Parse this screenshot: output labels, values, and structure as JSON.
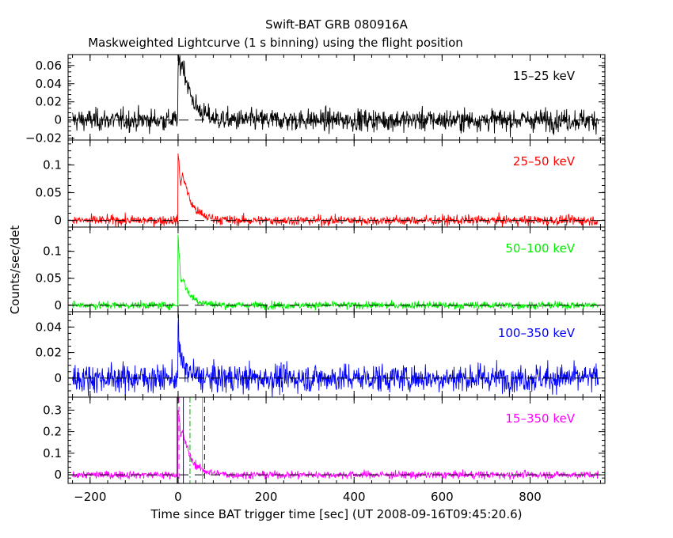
{
  "chart_data": {
    "type": "line",
    "title": "Swift-BAT GRB 080916A",
    "subtitle": "Maskweighted Lightcurve (1 s binning) using the flight position",
    "xlabel": "Time since BAT trigger time [sec] (UT 2008-09-16T09:45:20.6)",
    "ylabel": "Counts/sec/det",
    "xlim": [
      -250,
      970
    ],
    "xticks": [
      -200,
      0,
      200,
      400,
      600,
      800
    ],
    "xtick_labels": [
      "−200",
      "0",
      "200",
      "400",
      "600",
      "800"
    ],
    "panels": [
      {
        "band": "15–25 keV",
        "color": "#000000",
        "ylim": [
          -0.022,
          0.072
        ],
        "yticks": [
          -0.02,
          0,
          0.02,
          0.04,
          0.06
        ],
        "ytick_labels": [
          "−0.02",
          "0",
          "0.02",
          "0.04",
          "0.06"
        ],
        "noise_sd": 0.006,
        "profile": [
          [
            0,
            0.055
          ],
          [
            3,
            0.065
          ],
          [
            6,
            0.06
          ],
          [
            10,
            0.063
          ],
          [
            14,
            0.055
          ],
          [
            20,
            0.042
          ],
          [
            30,
            0.025
          ],
          [
            45,
            0.012
          ],
          [
            65,
            0.005
          ],
          [
            90,
            0.001
          ],
          [
            120,
            0
          ]
        ]
      },
      {
        "band": "25–50 keV",
        "color": "#ff0000",
        "ylim": [
          -0.012,
          0.145
        ],
        "yticks": [
          0,
          0.05,
          0.1
        ],
        "ytick_labels": [
          "0",
          "0.05",
          "0.1"
        ],
        "noise_sd": 0.0045,
        "profile": [
          [
            0,
            0.12
          ],
          [
            3,
            0.095
          ],
          [
            6,
            0.06
          ],
          [
            10,
            0.085
          ],
          [
            15,
            0.07
          ],
          [
            20,
            0.055
          ],
          [
            30,
            0.03
          ],
          [
            45,
            0.015
          ],
          [
            65,
            0.006
          ],
          [
            90,
            0.002
          ],
          [
            120,
            0
          ]
        ]
      },
      {
        "band": "50–100 keV",
        "color": "#00ee00",
        "ylim": [
          -0.012,
          0.145
        ],
        "yticks": [
          0,
          0.05,
          0.1
        ],
        "ytick_labels": [
          "0",
          "0.05",
          "0.1"
        ],
        "noise_sd": 0.0035,
        "profile": [
          [
            0,
            0.13
          ],
          [
            3,
            0.09
          ],
          [
            6,
            0.045
          ],
          [
            10,
            0.05
          ],
          [
            15,
            0.04
          ],
          [
            20,
            0.028
          ],
          [
            30,
            0.016
          ],
          [
            45,
            0.008
          ],
          [
            65,
            0.003
          ],
          [
            90,
            0.001
          ],
          [
            120,
            0
          ]
        ]
      },
      {
        "band": "100–350 keV",
        "color": "#0000ff",
        "ylim": [
          -0.015,
          0.052
        ],
        "yticks": [
          0,
          0.02,
          0.04
        ],
        "ytick_labels": [
          "0",
          "0.02",
          "0.04"
        ],
        "noise_sd": 0.0055,
        "profile": [
          [
            0,
            0.042
          ],
          [
            3,
            0.025
          ],
          [
            6,
            0.013
          ],
          [
            10,
            0.012
          ],
          [
            15,
            0.008
          ],
          [
            25,
            0.004
          ],
          [
            40,
            0.002
          ],
          [
            60,
            0
          ],
          [
            120,
            0
          ]
        ]
      },
      {
        "band": "15–350 keV",
        "color": "#ff00ff",
        "ylim": [
          -0.04,
          0.36
        ],
        "yticks": [
          0,
          0.1,
          0.2,
          0.3
        ],
        "ytick_labels": [
          "0",
          "0.1",
          "0.2",
          "0.3"
        ],
        "noise_sd": 0.009,
        "profile": [
          [
            0,
            0.31
          ],
          [
            3,
            0.25
          ],
          [
            6,
            0.17
          ],
          [
            10,
            0.2
          ],
          [
            15,
            0.16
          ],
          [
            20,
            0.13
          ],
          [
            30,
            0.07
          ],
          [
            45,
            0.035
          ],
          [
            65,
            0.015
          ],
          [
            90,
            0.005
          ],
          [
            120,
            0
          ]
        ]
      }
    ],
    "vertical_markers": [
      {
        "x": -2,
        "color": "#000000",
        "style": "solid"
      },
      {
        "x": 2,
        "color": "#ff00ff",
        "style": "dashed"
      },
      {
        "x": 12,
        "color": "#0000ff",
        "style": "solid"
      },
      {
        "x": 27,
        "color": "#00aa00",
        "style": "dashdot"
      },
      {
        "x": 55,
        "color": "#ff8800",
        "style": "solid"
      },
      {
        "x": 60,
        "color": "#000000",
        "style": "dashed"
      }
    ]
  }
}
